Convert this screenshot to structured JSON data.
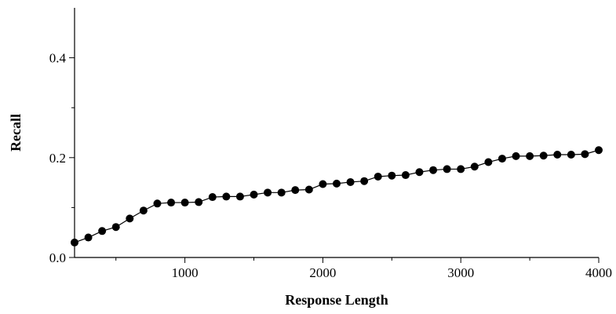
{
  "chart_data": {
    "type": "line",
    "xlabel": "Response Length",
    "ylabel": "Recall",
    "xlim": [
      200,
      4000
    ],
    "ylim": [
      0,
      0.5
    ],
    "xticks": [
      1000,
      2000,
      3000,
      4000
    ],
    "xtick_labels": [
      "1000",
      "2000",
      "3000",
      "4000"
    ],
    "yticks": [
      0.0,
      0.2,
      0.4
    ],
    "ytick_labels": [
      "0.0",
      "0.2",
      "0.4"
    ],
    "x_minor_ticks": [
      500,
      1500,
      2500,
      3500
    ],
    "y_minor_ticks": [
      0.1,
      0.3
    ],
    "grid": false,
    "legend": "none",
    "series_color": "#000000",
    "series": [
      {
        "x": [
          200,
          300,
          400,
          500,
          600,
          700,
          800,
          900,
          1000,
          1100,
          1200,
          1300,
          1400,
          1500,
          1600,
          1700,
          1800,
          1900,
          2000,
          2100,
          2200,
          2300,
          2400,
          2500,
          2600,
          2700,
          2800,
          2900,
          3000,
          3100,
          3200,
          3300,
          3400,
          3500,
          3600,
          3700,
          3800,
          3900,
          4000
        ],
        "values": [
          0.03,
          0.04,
          0.053,
          0.061,
          0.078,
          0.094,
          0.108,
          0.11,
          0.11,
          0.111,
          0.121,
          0.122,
          0.122,
          0.126,
          0.13,
          0.13,
          0.135,
          0.136,
          0.147,
          0.148,
          0.151,
          0.153,
          0.162,
          0.164,
          0.165,
          0.171,
          0.175,
          0.177,
          0.177,
          0.182,
          0.191,
          0.198,
          0.203,
          0.203,
          0.204,
          0.206,
          0.206,
          0.207,
          0.215
        ]
      }
    ]
  }
}
